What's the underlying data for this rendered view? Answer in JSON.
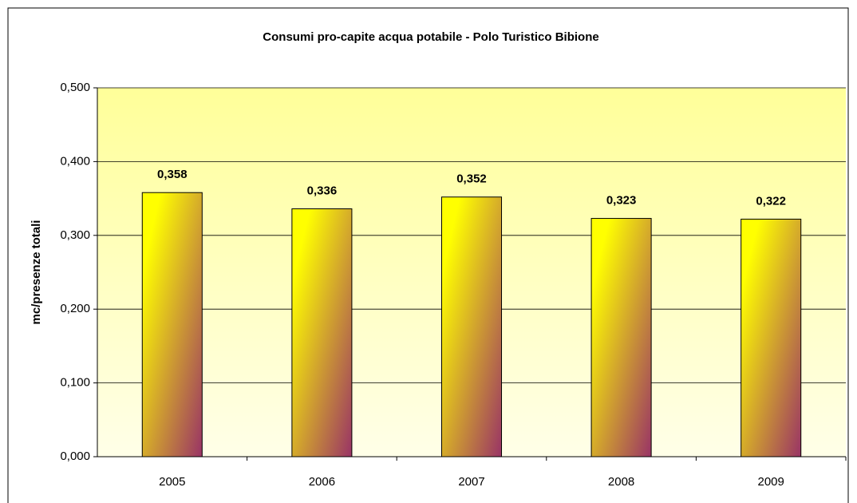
{
  "chart_data": {
    "type": "bar",
    "title": "Consumi pro-capite acqua potabile - Polo Turistico Bibione",
    "ylabel": "mc/presenze totali",
    "categories": [
      "2005",
      "2006",
      "2007",
      "2008",
      "2009"
    ],
    "values": [
      0.358,
      0.336,
      0.352,
      0.323,
      0.322
    ],
    "value_labels": [
      "0,358",
      "0,336",
      "0,352",
      "0,323",
      "0,322"
    ],
    "colors": [
      "#ffff00",
      "#993366"
    ],
    "ylim": [
      0,
      0.5
    ],
    "yticks": [
      {
        "value": 0,
        "label": "0,000"
      },
      {
        "value": 0.1,
        "label": "0,100"
      },
      {
        "value": 0.2,
        "label": "0,200"
      },
      {
        "value": 0.3,
        "label": "0,300"
      },
      {
        "value": 0.4,
        "label": "0,400"
      },
      {
        "value": 0.5,
        "label": "0,500"
      }
    ],
    "grid": true
  }
}
